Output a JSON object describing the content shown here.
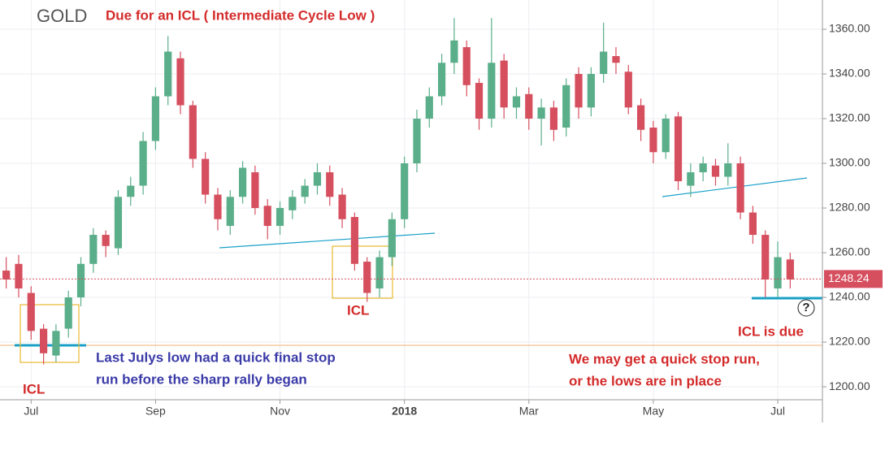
{
  "chart_data": {
    "type": "candlestick",
    "title": "GOLD",
    "subtitle": "Due for an ICL  ( Intermediate Cycle Low )",
    "categories": [
      null,
      null,
      "Jul",
      null,
      null,
      null,
      null,
      null,
      null,
      null,
      null,
      null,
      "Sep",
      null,
      null,
      null,
      null,
      null,
      null,
      null,
      null,
      null,
      "Nov",
      null,
      null,
      null,
      null,
      null,
      null,
      null,
      null,
      null,
      "2018",
      null,
      null,
      null,
      null,
      null,
      null,
      null,
      null,
      null,
      "Mar",
      null,
      null,
      null,
      null,
      null,
      null,
      null,
      null,
      null,
      "May",
      null,
      null,
      null,
      null,
      null,
      null,
      null,
      null,
      null,
      "Jul",
      null
    ],
    "series": [
      {
        "up_color": "#5aae8a",
        "down_color": "#d64f5f",
        "open": [
          1252,
          1255,
          1242,
          1226,
          1214,
          1226,
          1240,
          1255,
          1268,
          1262,
          1285,
          1290,
          1310,
          1330,
          1347,
          1326,
          1302,
          1286,
          1272,
          1285,
          1296,
          1281,
          1272,
          1279,
          1285,
          1290,
          1296,
          1286,
          1276,
          1256,
          1244,
          1258,
          1275,
          1300,
          1320,
          1330,
          1345,
          1352,
          1336,
          1320,
          1346,
          1325,
          1331,
          1320,
          1325,
          1316,
          1340,
          1325,
          1340,
          1348,
          1341,
          1326,
          1316,
          1305,
          1321,
          1290,
          1296,
          1299,
          1294,
          1300,
          1278,
          1268,
          1244,
          1257
        ],
        "high": [
          1258,
          1259,
          1245,
          1228,
          1228,
          1243,
          1258,
          1271,
          1270,
          1288,
          1294,
          1314,
          1334,
          1357,
          1350,
          1328,
          1305,
          1289,
          1288,
          1301,
          1299,
          1284,
          1283,
          1288,
          1293,
          1300,
          1299,
          1289,
          1278,
          1258,
          1261,
          1278,
          1303,
          1324,
          1334,
          1349,
          1365,
          1355,
          1338,
          1365,
          1349,
          1334,
          1334,
          1329,
          1328,
          1338,
          1343,
          1343,
          1363,
          1352,
          1344,
          1329,
          1319,
          1322,
          1323,
          1300,
          1303,
          1302,
          1309,
          1303,
          1281,
          1270,
          1265,
          1260
        ],
        "low": [
          1244,
          1240,
          1221,
          1210,
          1211,
          1222,
          1236,
          1251,
          1258,
          1259,
          1281,
          1286,
          1306,
          1326,
          1322,
          1298,
          1282,
          1270,
          1268,
          1282,
          1277,
          1266,
          1268,
          1275,
          1282,
          1286,
          1281,
          1271,
          1252,
          1238,
          1240,
          1254,
          1271,
          1296,
          1316,
          1326,
          1340,
          1330,
          1315,
          1316,
          1320,
          1320,
          1315,
          1308,
          1310,
          1312,
          1320,
          1321,
          1336,
          1340,
          1322,
          1310,
          1300,
          1302,
          1288,
          1285,
          1292,
          1290,
          1290,
          1275,
          1264,
          1240,
          1240,
          1244
        ],
        "close": [
          1248,
          1244,
          1225,
          1215,
          1225,
          1240,
          1255,
          1268,
          1263,
          1285,
          1290,
          1310,
          1330,
          1350,
          1326,
          1302,
          1286,
          1275,
          1285,
          1298,
          1280,
          1272,
          1280,
          1285,
          1290,
          1296,
          1285,
          1275,
          1255,
          1242,
          1258,
          1275,
          1300,
          1320,
          1330,
          1345,
          1355,
          1335,
          1320,
          1345,
          1325,
          1330,
          1320,
          1325,
          1315,
          1335,
          1325,
          1340,
          1350,
          1345,
          1325,
          1315,
          1305,
          1320,
          1292,
          1296,
          1300,
          1294,
          1300,
          1278,
          1268,
          1248,
          1258,
          1248
        ]
      }
    ],
    "last_price": 1248.24,
    "ylim": [
      1194.2,
      1373.1
    ],
    "yticks": [
      {
        "value": 1200,
        "label": "1200.00"
      },
      {
        "value": 1220,
        "label": "1220.00"
      },
      {
        "value": 1240,
        "label": "1240.00"
      },
      {
        "value": 1260,
        "label": "1260.00"
      },
      {
        "value": 1280,
        "label": "1280.00"
      },
      {
        "value": 1300,
        "label": "1300.00"
      },
      {
        "value": 1320,
        "label": "1320.00"
      },
      {
        "value": 1340,
        "label": "1340.00"
      },
      {
        "value": 1360,
        "label": "1360.00"
      }
    ],
    "grid": true,
    "annotations": {
      "icl_left": "ICL",
      "icl_mid": "ICL",
      "icl_due": "ICL is due",
      "question": "?",
      "left_note": [
        "Last Julys low had a quick final stop",
        "run before the sharp rally began"
      ],
      "right_note": [
        "We may get a quick stop run,",
        "or the lows are in place"
      ]
    }
  }
}
